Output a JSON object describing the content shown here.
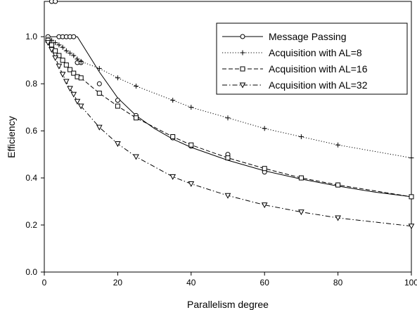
{
  "chart_data": {
    "type": "line",
    "xlabel": "Parallelism degree",
    "ylabel": "Efficiency",
    "xlim": [
      0,
      100
    ],
    "ylim": [
      0.0,
      1.15
    ],
    "xticks": [
      0,
      20,
      40,
      60,
      80,
      100
    ],
    "yticks": [
      0.0,
      0.2,
      0.4,
      0.6,
      0.8,
      1.0
    ],
    "xtick_labels": [
      "0",
      "20",
      "40",
      "60",
      "80",
      "100"
    ],
    "ytick_labels": [
      "0.0",
      "0.2",
      "0.4",
      "0.6",
      "0.8",
      "1.0"
    ],
    "legend_position": "top-right",
    "grid": false,
    "series": [
      {
        "name": "Message Passing",
        "line_style": "solid",
        "marker": "circle",
        "line": [
          {
            "x": 1,
            "y": 1.0
          },
          {
            "x": 8,
            "y": 1.0
          },
          {
            "x": 9,
            "y": 1.0
          },
          {
            "x": 15,
            "y": 0.85
          },
          {
            "x": 20,
            "y": 0.74
          },
          {
            "x": 25,
            "y": 0.665
          },
          {
            "x": 30,
            "y": 0.61
          },
          {
            "x": 35,
            "y": 0.565
          },
          {
            "x": 40,
            "y": 0.53
          },
          {
            "x": 50,
            "y": 0.475
          },
          {
            "x": 60,
            "y": 0.43
          },
          {
            "x": 70,
            "y": 0.395
          },
          {
            "x": 80,
            "y": 0.365
          },
          {
            "x": 90,
            "y": 0.34
          },
          {
            "x": 100,
            "y": 0.32
          }
        ],
        "points": [
          {
            "x": 1,
            "y": 1.0
          },
          {
            "x": 2,
            "y": 1.15
          },
          {
            "x": 3,
            "y": 1.15
          },
          {
            "x": 4,
            "y": 1.0
          },
          {
            "x": 5,
            "y": 1.0
          },
          {
            "x": 6,
            "y": 1.0
          },
          {
            "x": 7,
            "y": 1.0
          },
          {
            "x": 8,
            "y": 1.0
          },
          {
            "x": 9,
            "y": 0.89
          },
          {
            "x": 10,
            "y": 0.89
          },
          {
            "x": 15,
            "y": 0.8
          },
          {
            "x": 20,
            "y": 0.73
          },
          {
            "x": 25,
            "y": 0.665
          },
          {
            "x": 35,
            "y": 0.57
          },
          {
            "x": 40,
            "y": 0.535
          },
          {
            "x": 50,
            "y": 0.5
          },
          {
            "x": 60,
            "y": 0.425
          },
          {
            "x": 70,
            "y": 0.4
          },
          {
            "x": 80,
            "y": 0.37
          },
          {
            "x": 100,
            "y": 0.32
          }
        ]
      },
      {
        "name": "Acquisition with AL=8",
        "line_style": "dotted",
        "marker": "plus",
        "points": [
          {
            "x": 1,
            "y": 0.99
          },
          {
            "x": 2,
            "y": 0.985
          },
          {
            "x": 3,
            "y": 0.975
          },
          {
            "x": 4,
            "y": 0.965
          },
          {
            "x": 5,
            "y": 0.955
          },
          {
            "x": 6,
            "y": 0.94
          },
          {
            "x": 7,
            "y": 0.93
          },
          {
            "x": 8,
            "y": 0.92
          },
          {
            "x": 9,
            "y": 0.905
          },
          {
            "x": 10,
            "y": 0.895
          },
          {
            "x": 15,
            "y": 0.865
          },
          {
            "x": 20,
            "y": 0.825
          },
          {
            "x": 25,
            "y": 0.79
          },
          {
            "x": 35,
            "y": 0.73
          },
          {
            "x": 40,
            "y": 0.7
          },
          {
            "x": 50,
            "y": 0.655
          },
          {
            "x": 60,
            "y": 0.61
          },
          {
            "x": 70,
            "y": 0.575
          },
          {
            "x": 80,
            "y": 0.54
          },
          {
            "x": 100,
            "y": 0.485
          }
        ]
      },
      {
        "name": "Acquisition with AL=16",
        "line_style": "dashed",
        "marker": "square",
        "points": [
          {
            "x": 1,
            "y": 0.985
          },
          {
            "x": 2,
            "y": 0.965
          },
          {
            "x": 3,
            "y": 0.94
          },
          {
            "x": 4,
            "y": 0.92
          },
          {
            "x": 5,
            "y": 0.9
          },
          {
            "x": 6,
            "y": 0.88
          },
          {
            "x": 7,
            "y": 0.86
          },
          {
            "x": 8,
            "y": 0.845
          },
          {
            "x": 9,
            "y": 0.83
          },
          {
            "x": 10,
            "y": 0.825
          },
          {
            "x": 15,
            "y": 0.76
          },
          {
            "x": 20,
            "y": 0.705
          },
          {
            "x": 25,
            "y": 0.655
          },
          {
            "x": 35,
            "y": 0.575
          },
          {
            "x": 40,
            "y": 0.54
          },
          {
            "x": 50,
            "y": 0.485
          },
          {
            "x": 60,
            "y": 0.44
          },
          {
            "x": 70,
            "y": 0.4
          },
          {
            "x": 80,
            "y": 0.37
          },
          {
            "x": 100,
            "y": 0.32
          }
        ]
      },
      {
        "name": "Acquisition with AL=32",
        "line_style": "dashdot",
        "marker": "triangle-down",
        "points": [
          {
            "x": 1,
            "y": 0.975
          },
          {
            "x": 2,
            "y": 0.945
          },
          {
            "x": 3,
            "y": 0.91
          },
          {
            "x": 4,
            "y": 0.875
          },
          {
            "x": 5,
            "y": 0.84
          },
          {
            "x": 6,
            "y": 0.81
          },
          {
            "x": 7,
            "y": 0.78
          },
          {
            "x": 8,
            "y": 0.755
          },
          {
            "x": 9,
            "y": 0.725
          },
          {
            "x": 10,
            "y": 0.705
          },
          {
            "x": 15,
            "y": 0.615
          },
          {
            "x": 20,
            "y": 0.545
          },
          {
            "x": 25,
            "y": 0.49
          },
          {
            "x": 35,
            "y": 0.405
          },
          {
            "x": 40,
            "y": 0.375
          },
          {
            "x": 50,
            "y": 0.325
          },
          {
            "x": 60,
            "y": 0.285
          },
          {
            "x": 70,
            "y": 0.255
          },
          {
            "x": 80,
            "y": 0.23
          },
          {
            "x": 100,
            "y": 0.195
          }
        ]
      }
    ]
  }
}
